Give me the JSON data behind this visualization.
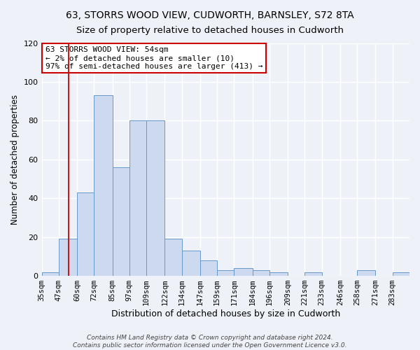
{
  "title": "63, STORRS WOOD VIEW, CUDWORTH, BARNSLEY, S72 8TA",
  "subtitle": "Size of property relative to detached houses in Cudworth",
  "xlabel": "Distribution of detached houses by size in Cudworth",
  "ylabel": "Number of detached properties",
  "bar_edges": [
    35,
    47,
    60,
    72,
    85,
    97,
    109,
    122,
    134,
    147,
    159,
    171,
    184,
    196,
    209,
    221,
    233,
    246,
    258,
    271,
    283
  ],
  "bar_heights": [
    2,
    19,
    43,
    93,
    56,
    80,
    80,
    19,
    13,
    8,
    3,
    4,
    3,
    2,
    0,
    2,
    0,
    0,
    3,
    0,
    2
  ],
  "bar_color": "#ccd9ee",
  "bar_edgecolor": "#6699cc",
  "redline_x": 54,
  "ylim": [
    0,
    120
  ],
  "yticks": [
    0,
    20,
    40,
    60,
    80,
    100,
    120
  ],
  "annotation_line1": "63 STORRS WOOD VIEW: 54sqm",
  "annotation_line2": "← 2% of detached houses are smaller (10)",
  "annotation_line3": "97% of semi-detached houses are larger (413) →",
  "annotation_box_edgecolor": "#cc0000",
  "annotation_box_facecolor": "#ffffff",
  "redline_color": "#cc0000",
  "bg_color": "#eef2f8",
  "grid_color": "#ffffff",
  "footer_line1": "Contains HM Land Registry data © Crown copyright and database right 2024.",
  "footer_line2": "Contains public sector information licensed under the Open Government Licence v3.0.",
  "title_fontsize": 10,
  "subtitle_fontsize": 9.5,
  "xlabel_fontsize": 9,
  "ylabel_fontsize": 8.5,
  "tick_fontsize": 7.5,
  "annotation_fontsize": 8,
  "footer_fontsize": 6.5
}
